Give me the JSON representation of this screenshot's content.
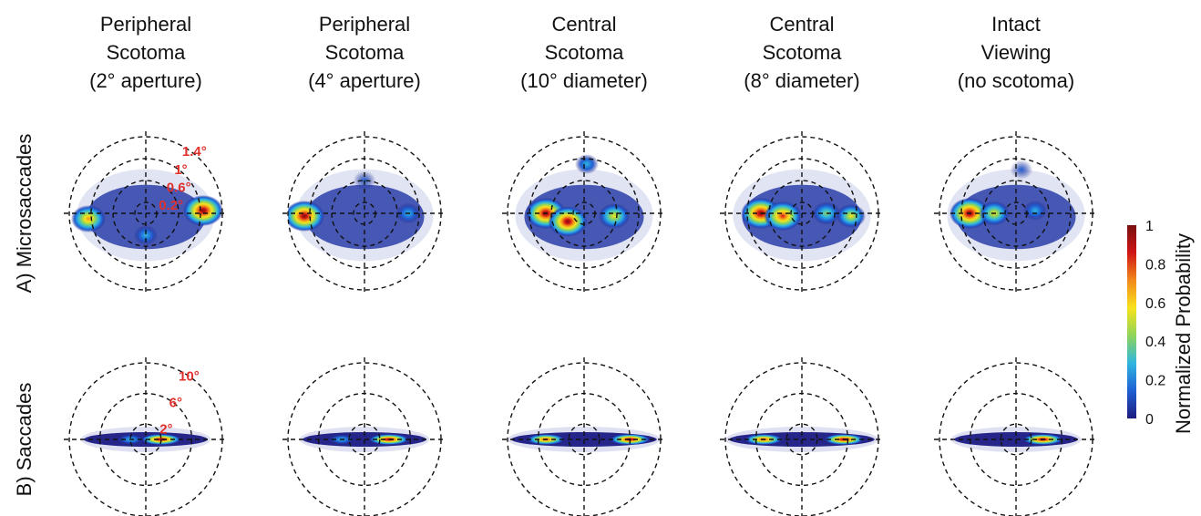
{
  "chart_data": {
    "type": "heatmap",
    "columns": [
      {
        "title": [
          "Peripheral",
          "Scotoma",
          "(2° aperture)"
        ]
      },
      {
        "title": [
          "Peripheral",
          "Scotoma",
          "(4° aperture)"
        ]
      },
      {
        "title": [
          "Central",
          "Scotoma",
          "(10° diameter)"
        ]
      },
      {
        "title": [
          "Central",
          "Scotoma",
          "(8° diameter)"
        ]
      },
      {
        "title": [
          "Intact",
          "Viewing",
          "(no scotoma)"
        ]
      }
    ],
    "rows": [
      {
        "label": "A) Microsaccades",
        "ring_labels": [
          "1.4°",
          "1°",
          "0.6°",
          "0.2°"
        ],
        "ring_radii_deg": [
          1.4,
          1.0,
          0.6,
          0.2
        ],
        "peaks": [
          [
            {
              "x": -1.05,
              "y": -0.1,
              "p": 0.75
            },
            {
              "x": 1.05,
              "y": 0.05,
              "p": 1.0
            },
            {
              "x": 0.0,
              "y": -0.4,
              "p": 0.25
            }
          ],
          [
            {
              "x": -1.1,
              "y": -0.05,
              "p": 1.0
            },
            {
              "x": 0.8,
              "y": 0.0,
              "p": 0.3
            },
            {
              "x": 0.0,
              "y": 0.6,
              "p": 0.2
            }
          ],
          [
            {
              "x": -0.7,
              "y": 0.0,
              "p": 1.0
            },
            {
              "x": -0.3,
              "y": -0.15,
              "p": 0.95
            },
            {
              "x": 0.55,
              "y": -0.05,
              "p": 0.6
            },
            {
              "x": 0.05,
              "y": 0.9,
              "p": 0.25
            }
          ],
          [
            {
              "x": -0.75,
              "y": 0.0,
              "p": 1.0
            },
            {
              "x": -0.35,
              "y": -0.05,
              "p": 0.9
            },
            {
              "x": 0.45,
              "y": 0.0,
              "p": 0.45
            },
            {
              "x": 0.9,
              "y": -0.05,
              "p": 0.5
            }
          ],
          [
            {
              "x": -0.85,
              "y": 0.0,
              "p": 1.0
            },
            {
              "x": -0.4,
              "y": 0.0,
              "p": 0.55
            },
            {
              "x": 0.35,
              "y": 0.05,
              "p": 0.25
            },
            {
              "x": 0.1,
              "y": 0.8,
              "p": 0.2
            }
          ]
        ]
      },
      {
        "label": "B) Saccades",
        "ring_labels": [
          "10°",
          "6°",
          "2°"
        ],
        "ring_radii_deg": [
          10,
          6,
          2
        ],
        "peaks": [
          [
            {
              "x": 2.0,
              "y": 0.0,
              "p": 1.0
            },
            {
              "x": -2.0,
              "y": 0.0,
              "p": 0.35
            }
          ],
          [
            {
              "x": 3.2,
              "y": 0.0,
              "p": 1.0
            },
            {
              "x": -3.0,
              "y": 0.0,
              "p": 0.3
            }
          ],
          [
            {
              "x": -5.0,
              "y": 0.0,
              "p": 0.9
            },
            {
              "x": 6.0,
              "y": 0.0,
              "p": 1.0
            }
          ],
          [
            {
              "x": -5.0,
              "y": 0.0,
              "p": 0.9
            },
            {
              "x": 5.5,
              "y": 0.0,
              "p": 1.0
            }
          ],
          [
            {
              "x": 3.5,
              "y": 0.0,
              "p": 1.0
            }
          ]
        ]
      }
    ],
    "colorbar": {
      "label": "Normalized Probability",
      "ticks": [
        "1",
        "0.8",
        "0.6",
        "0.4",
        "0.2",
        "0"
      ],
      "range": [
        0,
        1
      ],
      "colormap": [
        "#1c1c80",
        "#1f5fd4",
        "#2fb6e0",
        "#8fd45a",
        "#f7e31d",
        "#f28a1a",
        "#d01515",
        "#7a0f0f"
      ]
    },
    "ring_label_color": "#e0302b"
  }
}
